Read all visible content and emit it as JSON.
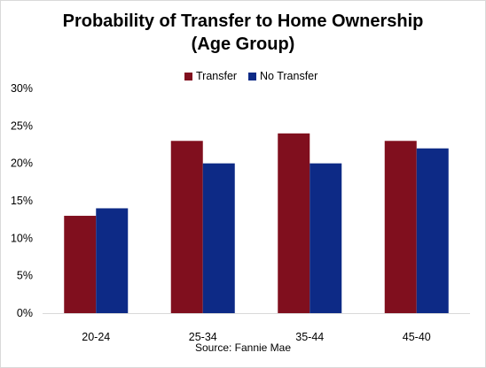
{
  "chart_data": {
    "type": "bar",
    "title_line1": "Probability of Transfer to Home Ownership",
    "title_line2": "(Age Group)",
    "categories": [
      "20-24",
      "25-34",
      "35-44",
      "45-40"
    ],
    "series": [
      {
        "name": "Transfer",
        "values": [
          13,
          23,
          24,
          23
        ],
        "color": "#800f1e"
      },
      {
        "name": "No Transfer",
        "values": [
          14,
          20,
          20,
          22
        ],
        "color": "#0d2a86"
      }
    ],
    "y_ticks": [
      "0%",
      "5%",
      "10%",
      "15%",
      "20%",
      "25%",
      "30%"
    ],
    "ylim": [
      0,
      30
    ],
    "grid": false,
    "legend_position": "top",
    "xlabel": "",
    "ylabel": "",
    "source": "Source: Fannie Mae"
  }
}
